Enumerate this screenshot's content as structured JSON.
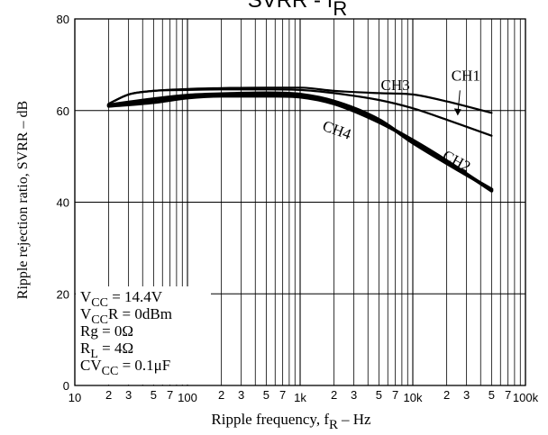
{
  "chart_data": {
    "type": "line",
    "title": "SVRR - f",
    "title_sub": "R",
    "xlabel": "Ripple frequency, f",
    "xlabel_sub": "R",
    "xlabel_unit": "–  Hz",
    "ylabel": "Ripple rejection ratio, SVRR  –  dB",
    "x_scale": "log",
    "xlim": [
      10,
      100000
    ],
    "ylim": [
      0,
      80
    ],
    "grid": true,
    "x_decade_labels": [
      "10",
      "100",
      "1k",
      "10k",
      "100k"
    ],
    "x_minor_labels": [
      "2",
      "3",
      "5",
      "7"
    ],
    "y_ticks": [
      "0",
      "20",
      "40",
      "60",
      "80"
    ],
    "series": [
      {
        "name": "CH1",
        "x": [
          20,
          30,
          50,
          100,
          200,
          500,
          1000,
          2000,
          5000,
          10000,
          20000,
          50000
        ],
        "y": [
          61.5,
          63.5,
          64.3,
          64.5,
          64.6,
          64.6,
          64.5,
          63.8,
          62.3,
          60.5,
          58.0,
          54.5
        ]
      },
      {
        "name": "CH2",
        "x": [
          20,
          50,
          100,
          200,
          500,
          1000,
          2000,
          5000,
          10000,
          20000,
          50000
        ],
        "y": [
          61.0,
          61.8,
          62.8,
          63.2,
          63.2,
          63.0,
          61.5,
          57.5,
          53.5,
          49.0,
          42.5
        ]
      },
      {
        "name": "CH3",
        "x": [
          20,
          30,
          50,
          100,
          200,
          500,
          1000,
          2000,
          5000,
          10000,
          20000,
          50000
        ],
        "y": [
          61.5,
          63.5,
          64.3,
          64.7,
          64.9,
          65.0,
          65.0,
          64.3,
          63.8,
          63.5,
          62.0,
          59.5
        ]
      },
      {
        "name": "CH4",
        "x": [
          20,
          50,
          100,
          200,
          500,
          1000,
          2000,
          5000,
          10000,
          20000,
          50000
        ],
        "y": [
          61.2,
          62.5,
          63.3,
          63.6,
          63.8,
          63.5,
          62.0,
          58.0,
          53.0,
          48.5,
          42.8
        ]
      }
    ],
    "conditions": [
      {
        "main": "V",
        "sub": "CC",
        "rest": " = 14.4V"
      },
      {
        "main": "V",
        "sub": "CC",
        "rest": "R = 0dBm"
      },
      {
        "main": "Rg = 0Ω",
        "sub": "",
        "rest": ""
      },
      {
        "main": "R",
        "sub": "L",
        "rest": " = 4Ω"
      },
      {
        "main": "CV",
        "sub": "CC",
        "rest": " = 0.1μF"
      }
    ]
  }
}
